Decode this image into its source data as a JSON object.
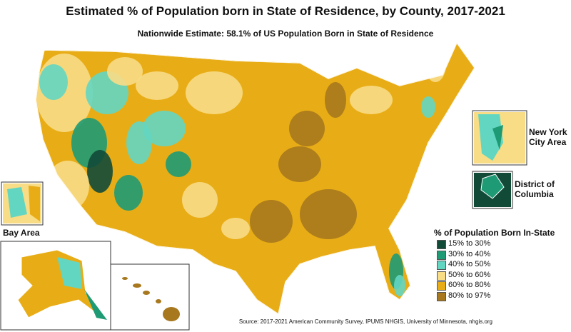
{
  "title": "Estimated % of Population born in State of Residence, by County, 2017-2021",
  "subtitle": "Nationwide Estimate: 58.1% of US Population Born in State of Residence",
  "insets": {
    "nyc": "New York City Area",
    "dc": "District of Columbia",
    "bay": "Bay Area"
  },
  "legend": {
    "title": "% of Population Born In-State",
    "items": [
      {
        "label": "15% to 30%",
        "color": "#124a38"
      },
      {
        "label": "30% to 40%",
        "color": "#1e9a74"
      },
      {
        "label": "40% to 50%",
        "color": "#63d6c2"
      },
      {
        "label": "50% to 60%",
        "color": "#f8dc86"
      },
      {
        "label": "60% to 80%",
        "color": "#e8ad16"
      },
      {
        "label": "80% to 97%",
        "color": "#a7781d"
      }
    ]
  },
  "source": "Source: 2017-2021 American Community Survey, IPUMS NHGIS, University of Minnesota, nhgis.org"
}
